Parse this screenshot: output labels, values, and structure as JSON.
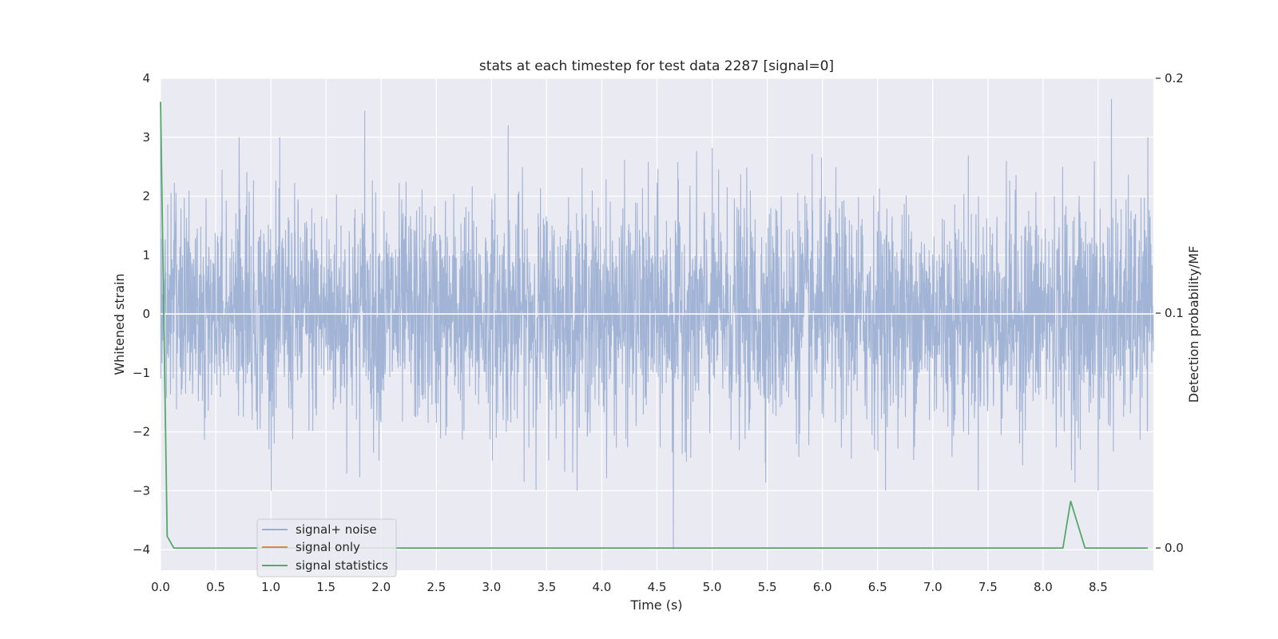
{
  "chart_data": {
    "type": "line",
    "title": "stats at each timestep for test data 2287 [signal=0]",
    "xlabel": "Time (s)",
    "ylabel": "Whitened strain",
    "y2label": "Detection probability/MF",
    "xlim": [
      0,
      9.0
    ],
    "ylim": [
      -4.35,
      4.0
    ],
    "y2lim": [
      -0.0095,
      0.2
    ],
    "x_ticks": [
      "0.0",
      "0.5",
      "1.0",
      "1.5",
      "2.0",
      "2.5",
      "3.0",
      "3.5",
      "4.0",
      "4.5",
      "5.0",
      "5.5",
      "6.0",
      "6.5",
      "7.0",
      "7.5",
      "8.0",
      "8.5"
    ],
    "y_ticks": [
      "4",
      "3",
      "2",
      "1",
      "0",
      "−1",
      "−2",
      "−3",
      "−4"
    ],
    "y2_ticks": [
      "0.2",
      "0.1",
      "0.0"
    ],
    "grid": true,
    "legend_position": "lower-left",
    "series": [
      {
        "name": "signal+ noise",
        "axis": "left",
        "color": "#9aaed1",
        "description": "whitened strain noise fluctuating mostly within about -2 to 2, spikes up to about 3.7 and down to -4",
        "x_range": [
          0,
          9.0
        ],
        "notable_points": [
          [
            0.0,
            3.3
          ],
          [
            1.85,
            3.45
          ],
          [
            3.15,
            3.2
          ],
          [
            4.65,
            -4.0
          ],
          [
            8.62,
            3.65
          ],
          [
            8.5,
            -3.0
          ]
        ]
      },
      {
        "name": "signal only",
        "axis": "left",
        "color": "#dd8452",
        "x": [
          0.0,
          9.0
        ],
        "values": [
          0,
          0
        ]
      },
      {
        "name": "signal statistics",
        "axis": "right",
        "color": "#55a868",
        "x": [
          0.0,
          0.06,
          0.12,
          8.18,
          8.25,
          8.38,
          8.95
        ],
        "values": [
          0.19,
          0.005,
          0.0,
          0.0,
          0.02,
          0.0,
          0.0
        ]
      }
    ]
  }
}
